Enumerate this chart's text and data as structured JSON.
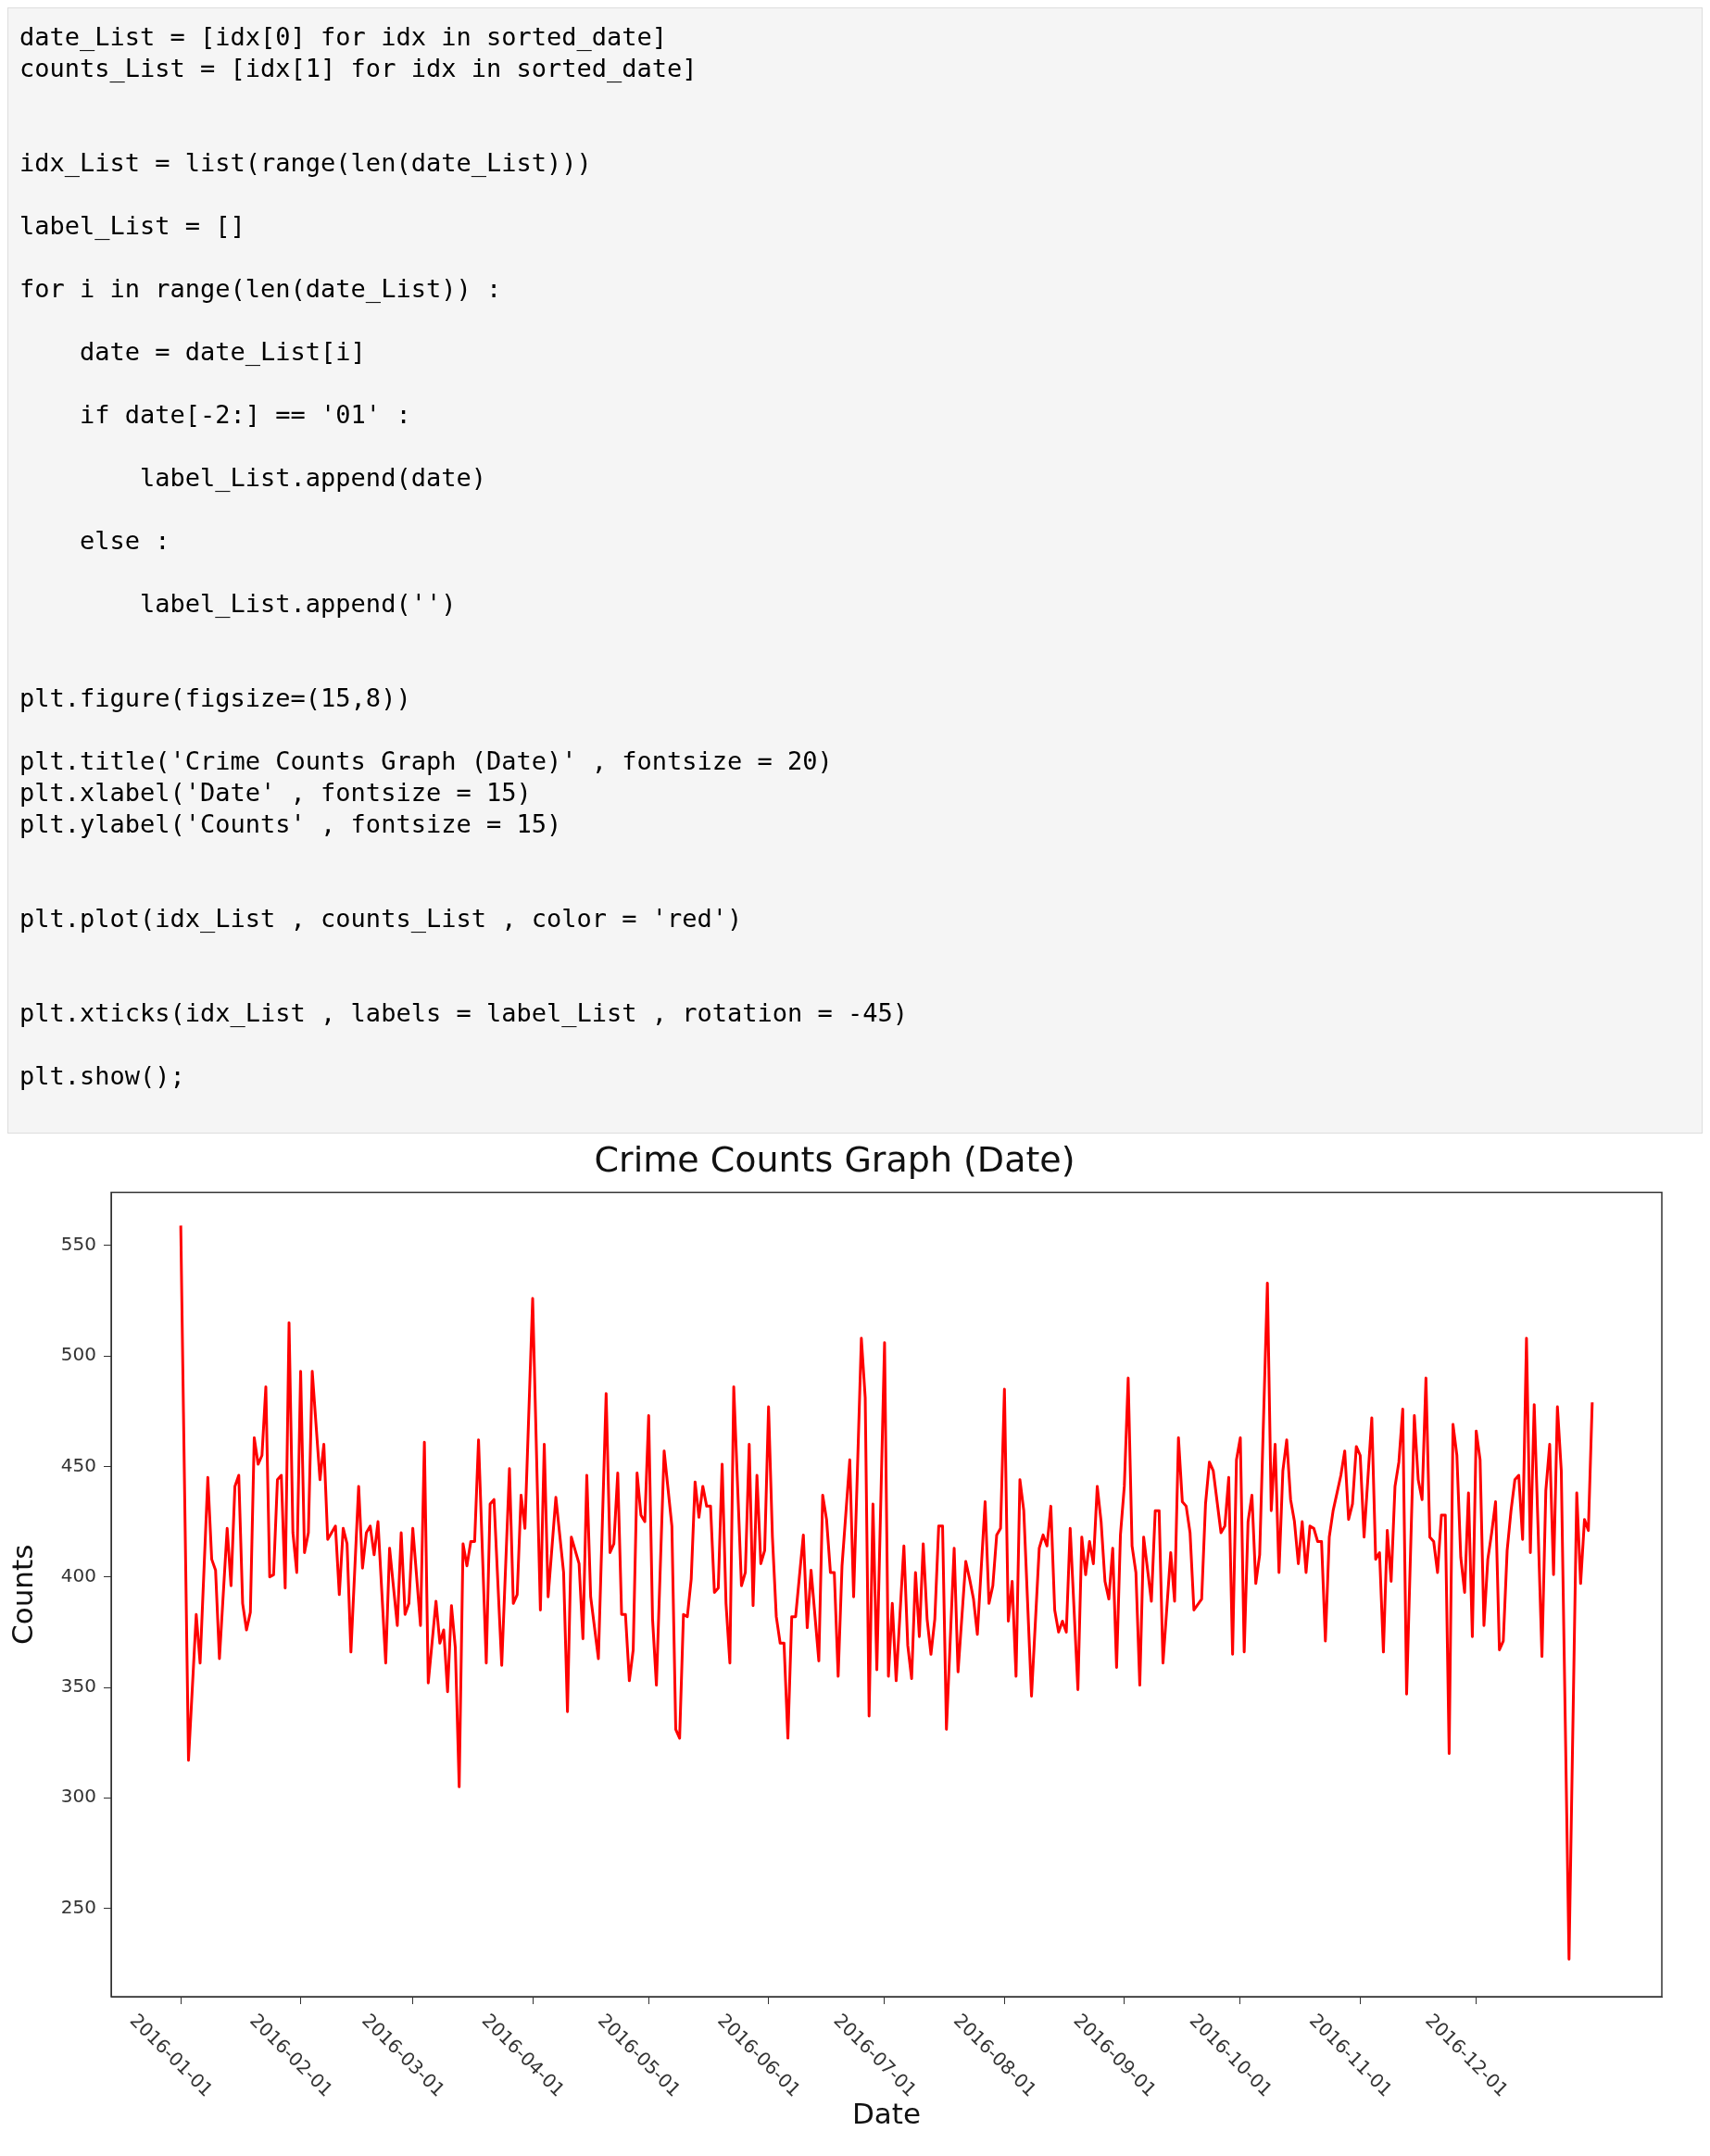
{
  "chart_data": {
    "type": "line",
    "title": "Crime Counts Graph (Date)",
    "xlabel": "Date",
    "ylabel": "Counts",
    "annotations": [
      "date_List = [idx[0] for idx in sorted_date]\ncounts_List = [idx[1] for idx in sorted_date]\n\n\nidx_List = list(range(len(date_List)))\n\nlabel_List = []\n\nfor i in range(len(date_List)) :\n\n    date = date_List[i]\n\n    if date[-2:] == '01' :\n\n        label_List.append(date)\n\n    else :\n\n        label_List.append('')\n\n\nplt.figure(figsize=(15,8))\n\nplt.title('Crime Counts Graph (Date)' , fontsize = 20)\nplt.xlabel('Date' , fontsize = 15)\nplt.ylabel('Counts' , fontsize = 15)\n\n\nplt.plot(idx_List , counts_List , color = 'red')\n\n\nplt.xticks(idx_List , labels = label_List , rotation = -45)\n\nplt.show();"
    ],
    "xlim": [
      "2015-12-14",
      "2017-01-18"
    ],
    "xticks": [
      "2016-01-01",
      "2016-02-01",
      "2016-03-01",
      "2016-04-01",
      "2016-05-01",
      "2016-06-01",
      "2016-07-01",
      "2016-08-01",
      "2016-09-01",
      "2016-10-01",
      "2016-11-01",
      "2016-12-01"
    ],
    "ylim": [
      210,
      574
    ],
    "yticks": [
      250,
      300,
      350,
      400,
      450,
      500,
      550
    ],
    "series": [
      {
        "color": "#ff0000",
        "x": [
          "2016-01-01",
          "2016-01-03",
          "2016-01-05",
          "2016-01-06",
          "2016-01-08",
          "2016-01-09",
          "2016-01-10",
          "2016-01-11",
          "2016-01-13",
          "2016-01-14",
          "2016-01-15",
          "2016-01-16",
          "2016-01-17",
          "2016-01-18",
          "2016-01-19",
          "2016-01-20",
          "2016-01-21",
          "2016-01-22",
          "2016-01-23",
          "2016-01-24",
          "2016-01-25",
          "2016-01-26",
          "2016-01-27",
          "2016-01-28",
          "2016-01-29",
          "2016-01-30",
          "2016-01-31",
          "2016-02-01",
          "2016-02-02",
          "2016-02-03",
          "2016-02-04",
          "2016-02-06",
          "2016-02-07",
          "2016-02-08",
          "2016-02-10",
          "2016-02-11",
          "2016-02-12",
          "2016-02-13",
          "2016-02-14",
          "2016-02-16",
          "2016-02-17",
          "2016-02-18",
          "2016-02-19",
          "2016-02-20",
          "2016-02-21",
          "2016-02-23",
          "2016-02-24",
          "2016-02-26",
          "2016-02-27",
          "2016-02-28",
          "2016-02-29",
          "2016-03-01",
          "2016-03-03",
          "2016-03-04",
          "2016-03-05",
          "2016-03-07",
          "2016-03-08",
          "2016-03-09",
          "2016-03-10",
          "2016-03-11",
          "2016-03-12",
          "2016-03-13",
          "2016-03-14",
          "2016-03-15",
          "2016-03-16",
          "2016-03-17",
          "2016-03-18",
          "2016-03-20",
          "2016-03-21",
          "2016-03-22",
          "2016-03-24",
          "2016-03-26",
          "2016-03-27",
          "2016-03-28",
          "2016-03-29",
          "2016-03-30",
          "2016-04-01",
          "2016-04-03",
          "2016-04-04",
          "2016-04-05",
          "2016-04-07",
          "2016-04-09",
          "2016-04-10",
          "2016-04-11",
          "2016-04-13",
          "2016-04-14",
          "2016-04-15",
          "2016-04-16",
          "2016-04-18",
          "2016-04-20",
          "2016-04-21",
          "2016-04-22",
          "2016-04-23",
          "2016-04-24",
          "2016-04-25",
          "2016-04-26",
          "2016-04-27",
          "2016-04-28",
          "2016-04-29",
          "2016-04-30",
          "2016-05-01",
          "2016-05-02",
          "2016-05-03",
          "2016-05-05",
          "2016-05-07",
          "2016-05-08",
          "2016-05-09",
          "2016-05-10",
          "2016-05-11",
          "2016-05-12",
          "2016-05-13",
          "2016-05-14",
          "2016-05-15",
          "2016-05-16",
          "2016-05-17",
          "2016-05-18",
          "2016-05-19",
          "2016-05-20",
          "2016-05-21",
          "2016-05-22",
          "2016-05-23",
          "2016-05-25",
          "2016-05-26",
          "2016-05-27",
          "2016-05-28",
          "2016-05-29",
          "2016-05-30",
          "2016-05-31",
          "2016-06-01",
          "2016-06-02",
          "2016-06-03",
          "2016-06-04",
          "2016-06-05",
          "2016-06-06",
          "2016-06-07",
          "2016-06-08",
          "2016-06-10",
          "2016-06-11",
          "2016-06-12",
          "2016-06-14",
          "2016-06-15",
          "2016-06-16",
          "2016-06-17",
          "2016-06-18",
          "2016-06-19",
          "2016-06-20",
          "2016-06-22",
          "2016-06-23",
          "2016-06-25",
          "2016-06-26",
          "2016-06-27",
          "2016-06-28",
          "2016-06-29",
          "2016-07-01",
          "2016-07-02",
          "2016-07-03",
          "2016-07-04",
          "2016-07-06",
          "2016-07-07",
          "2016-07-08",
          "2016-07-09",
          "2016-07-10",
          "2016-07-11",
          "2016-07-12",
          "2016-07-13",
          "2016-07-14",
          "2016-07-15",
          "2016-07-16",
          "2016-07-17",
          "2016-07-19",
          "2016-07-20",
          "2016-07-22",
          "2016-07-23",
          "2016-07-24",
          "2016-07-25",
          "2016-07-27",
          "2016-07-28",
          "2016-07-29",
          "2016-07-30",
          "2016-07-31",
          "2016-08-01",
          "2016-08-02",
          "2016-08-03",
          "2016-08-04",
          "2016-08-05",
          "2016-08-06",
          "2016-08-08",
          "2016-08-10",
          "2016-08-11",
          "2016-08-12",
          "2016-08-13",
          "2016-08-14",
          "2016-08-15",
          "2016-08-16",
          "2016-08-17",
          "2016-08-18",
          "2016-08-20",
          "2016-08-21",
          "2016-08-22",
          "2016-08-23",
          "2016-08-24",
          "2016-08-25",
          "2016-08-26",
          "2016-08-27",
          "2016-08-28",
          "2016-08-29",
          "2016-08-30",
          "2016-08-31",
          "2016-09-01",
          "2016-09-02",
          "2016-09-03",
          "2016-09-04",
          "2016-09-05",
          "2016-09-06",
          "2016-09-08",
          "2016-09-09",
          "2016-09-10",
          "2016-09-11",
          "2016-09-13",
          "2016-09-14",
          "2016-09-15",
          "2016-09-16",
          "2016-09-17",
          "2016-09-18",
          "2016-09-19",
          "2016-09-21",
          "2016-09-22",
          "2016-09-23",
          "2016-09-24",
          "2016-09-26",
          "2016-09-27",
          "2016-09-28",
          "2016-09-29",
          "2016-09-30",
          "2016-10-01",
          "2016-10-02",
          "2016-10-03",
          "2016-10-04",
          "2016-10-05",
          "2016-10-06",
          "2016-10-08",
          "2016-10-09",
          "2016-10-10",
          "2016-10-11",
          "2016-10-12",
          "2016-10-13",
          "2016-10-14",
          "2016-10-15",
          "2016-10-16",
          "2016-10-17",
          "2016-10-18",
          "2016-10-19",
          "2016-10-20",
          "2016-10-21",
          "2016-10-22",
          "2016-10-23",
          "2016-10-24",
          "2016-10-25",
          "2016-10-26",
          "2016-10-27",
          "2016-10-28",
          "2016-10-29",
          "2016-10-30",
          "2016-10-31",
          "2016-11-01",
          "2016-11-02",
          "2016-11-04",
          "2016-11-05",
          "2016-11-06",
          "2016-11-07",
          "2016-11-08",
          "2016-11-09",
          "2016-11-10",
          "2016-11-11",
          "2016-11-12",
          "2016-11-13",
          "2016-11-15",
          "2016-11-16",
          "2016-11-17",
          "2016-11-18",
          "2016-11-19",
          "2016-11-20",
          "2016-11-21",
          "2016-11-22",
          "2016-11-23",
          "2016-11-24",
          "2016-11-25",
          "2016-11-26",
          "2016-11-27",
          "2016-11-28",
          "2016-11-29",
          "2016-11-30",
          "2016-12-01",
          "2016-12-02",
          "2016-12-03",
          "2016-12-04",
          "2016-12-05",
          "2016-12-06",
          "2016-12-07",
          "2016-12-08",
          "2016-12-09",
          "2016-12-10",
          "2016-12-11",
          "2016-12-12",
          "2016-12-13",
          "2016-12-14",
          "2016-12-15",
          "2016-12-16",
          "2016-12-17",
          "2016-12-18",
          "2016-12-19",
          "2016-12-20",
          "2016-12-21",
          "2016-12-22",
          "2016-12-23",
          "2016-12-25",
          "2016-12-27",
          "2016-12-28",
          "2016-12-29",
          "2016-12-30",
          "2016-12-31"
        ],
        "values": [
          559,
          317,
          383,
          361,
          445,
          408,
          403,
          363,
          422,
          396,
          441,
          446,
          388,
          376,
          384,
          463,
          451,
          455,
          486,
          400,
          401,
          444,
          446,
          395,
          515,
          420,
          402,
          493,
          411,
          420,
          493,
          444,
          460,
          417,
          423,
          392,
          422,
          415,
          366,
          441,
          404,
          420,
          423,
          410,
          425,
          361,
          413,
          378,
          420,
          383,
          388,
          422,
          378,
          461,
          352,
          389,
          370,
          376,
          348,
          387,
          368,
          305,
          415,
          405,
          416,
          416,
          462,
          361,
          433,
          435,
          360,
          449,
          388,
          392,
          437,
          422,
          526,
          385,
          460,
          391,
          436,
          402,
          339,
          418,
          406,
          372,
          446,
          391,
          363,
          483,
          411,
          415,
          447,
          383,
          383,
          353,
          367,
          447,
          428,
          425,
          473,
          381,
          351,
          457,
          423,
          331,
          327,
          383,
          382,
          399,
          443,
          427,
          441,
          432,
          432,
          393,
          395,
          451,
          388,
          361,
          486,
          396,
          402,
          460,
          387,
          446,
          406,
          412,
          477,
          418,
          382,
          370,
          370,
          327,
          382,
          382,
          419,
          377,
          403,
          362,
          437,
          426,
          402,
          402,
          355,
          405,
          453,
          391,
          508,
          481,
          337,
          433,
          358,
          506,
          355,
          388,
          353,
          414,
          369,
          354,
          402,
          373,
          415,
          381,
          365,
          381,
          423,
          423,
          331,
          413,
          357,
          407,
          399,
          390,
          374,
          434,
          388,
          396,
          419,
          422,
          485,
          380,
          398,
          355,
          444,
          430,
          346,
          413,
          419,
          414,
          432,
          385,
          375,
          380,
          375,
          422,
          349,
          418,
          401,
          416,
          406,
          441,
          425,
          398,
          390,
          413,
          359,
          419,
          441,
          490,
          414,
          402,
          351,
          418,
          389,
          430,
          430,
          361,
          411,
          389,
          463,
          434,
          432,
          420,
          385,
          390,
          433,
          452,
          448,
          420,
          423,
          445,
          365,
          453,
          463,
          366,
          425,
          437,
          397,
          410,
          533,
          430,
          460,
          402,
          448,
          462,
          435,
          425,
          406,
          425,
          402,
          423,
          422,
          416,
          416,
          371,
          418,
          430,
          438,
          446,
          457,
          426,
          433,
          459,
          455,
          418,
          472,
          408,
          411,
          366,
          421,
          398,
          441,
          452,
          476,
          347,
          473,
          444,
          435,
          490,
          418,
          416,
          402,
          428,
          428,
          320,
          469,
          455,
          409,
          393,
          438,
          373,
          466,
          453,
          378,
          408,
          420,
          434,
          367,
          371,
          412,
          430,
          444,
          446,
          417,
          508,
          411,
          478,
          422,
          364,
          439,
          460,
          401,
          477,
          448,
          227,
          438,
          397,
          426,
          421,
          479
        ]
      }
    ]
  }
}
